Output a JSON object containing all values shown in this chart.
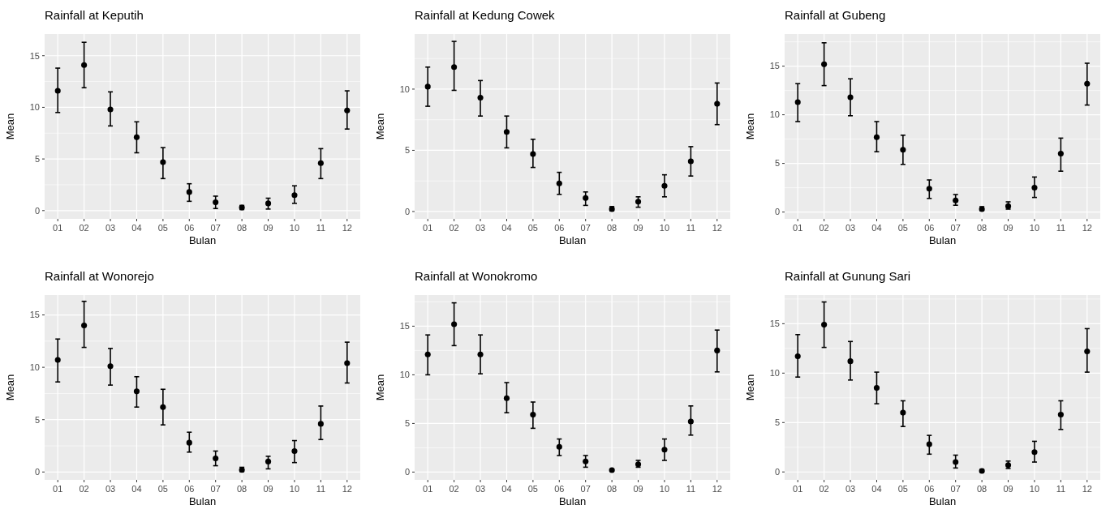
{
  "chart_data": [
    {
      "type": "scatter",
      "title": "Rainfall at Keputih",
      "xlabel": "Bulan",
      "ylabel": "Mean",
      "categories": [
        "01",
        "02",
        "03",
        "04",
        "05",
        "06",
        "07",
        "08",
        "09",
        "10",
        "11",
        "12"
      ],
      "color": "#000000",
      "marker": "circle",
      "grid": true,
      "ylim": [
        -0.8,
        17.1
      ],
      "yticks": [
        0,
        5,
        10,
        15
      ],
      "values": [
        11.6,
        14.1,
        9.8,
        7.1,
        4.7,
        1.8,
        0.8,
        0.3,
        0.7,
        1.5,
        4.6,
        9.7
      ],
      "errors": [
        [
          9.5,
          13.8
        ],
        [
          11.9,
          16.3
        ],
        [
          8.2,
          11.5
        ],
        [
          5.6,
          8.6
        ],
        [
          3.1,
          6.1
        ],
        [
          0.9,
          2.6
        ],
        [
          0.2,
          1.4
        ],
        [
          0.1,
          0.5
        ],
        [
          0.15,
          1.2
        ],
        [
          0.7,
          2.4
        ],
        [
          3.1,
          6.0
        ],
        [
          7.9,
          11.6
        ]
      ]
    },
    {
      "type": "scatter",
      "title": "Rainfall at Kedung Cowek",
      "xlabel": "Bulan",
      "ylabel": "Mean",
      "categories": [
        "01",
        "02",
        "03",
        "04",
        "05",
        "06",
        "07",
        "08",
        "09",
        "10",
        "11",
        "12"
      ],
      "color": "#000000",
      "marker": "circle",
      "grid": true,
      "ylim": [
        -0.6,
        14.5
      ],
      "yticks": [
        0,
        5,
        10
      ],
      "values": [
        10.2,
        11.8,
        9.3,
        6.5,
        4.7,
        2.3,
        1.1,
        0.2,
        0.8,
        2.1,
        4.1,
        8.8
      ],
      "errors": [
        [
          8.6,
          11.8
        ],
        [
          9.9,
          13.9
        ],
        [
          7.8,
          10.7
        ],
        [
          5.2,
          7.8
        ],
        [
          3.6,
          5.9
        ],
        [
          1.4,
          3.2
        ],
        [
          0.5,
          1.6
        ],
        [
          0.05,
          0.4
        ],
        [
          0.35,
          1.2
        ],
        [
          1.2,
          3.0
        ],
        [
          2.9,
          5.3
        ],
        [
          7.1,
          10.5
        ]
      ]
    },
    {
      "type": "scatter",
      "title": "Rainfall at Gubeng",
      "xlabel": "Bulan",
      "ylabel": "Mean",
      "categories": [
        "01",
        "02",
        "03",
        "04",
        "05",
        "06",
        "07",
        "08",
        "09",
        "10",
        "11",
        "12"
      ],
      "color": "#000000",
      "marker": "circle",
      "grid": true,
      "ylim": [
        -0.7,
        18.3
      ],
      "yticks": [
        0,
        5,
        10,
        15
      ],
      "values": [
        11.3,
        15.2,
        11.8,
        7.7,
        6.4,
        2.4,
        1.2,
        0.3,
        0.6,
        2.5,
        6.0,
        13.2
      ],
      "errors": [
        [
          9.3,
          13.2
        ],
        [
          13.0,
          17.4
        ],
        [
          9.9,
          13.7
        ],
        [
          6.2,
          9.3
        ],
        [
          4.9,
          7.9
        ],
        [
          1.4,
          3.3
        ],
        [
          0.7,
          1.8
        ],
        [
          0.15,
          0.55
        ],
        [
          0.3,
          1.05
        ],
        [
          1.5,
          3.6
        ],
        [
          4.2,
          7.6
        ],
        [
          11.0,
          15.3
        ]
      ]
    },
    {
      "type": "scatter",
      "title": "Rainfall at Wonorejo",
      "xlabel": "Bulan",
      "ylabel": "Mean",
      "categories": [
        "01",
        "02",
        "03",
        "04",
        "05",
        "06",
        "07",
        "08",
        "09",
        "10",
        "11",
        "12"
      ],
      "color": "#000000",
      "marker": "circle",
      "grid": true,
      "ylim": [
        -0.75,
        16.9
      ],
      "yticks": [
        0,
        5,
        10,
        15
      ],
      "values": [
        10.7,
        14.0,
        10.1,
        7.7,
        6.2,
        2.8,
        1.3,
        0.2,
        1.0,
        2.0,
        4.6,
        10.4
      ],
      "errors": [
        [
          8.6,
          12.7
        ],
        [
          11.9,
          16.3
        ],
        [
          8.3,
          11.8
        ],
        [
          6.2,
          9.1
        ],
        [
          4.5,
          7.9
        ],
        [
          1.9,
          3.8
        ],
        [
          0.6,
          2.0
        ],
        [
          0.05,
          0.45
        ],
        [
          0.3,
          1.5
        ],
        [
          0.9,
          3.0
        ],
        [
          3.1,
          6.3
        ],
        [
          8.5,
          12.4
        ]
      ]
    },
    {
      "type": "scatter",
      "title": "Rainfall at Wonokromo",
      "xlabel": "Bulan",
      "ylabel": "Mean",
      "categories": [
        "01",
        "02",
        "03",
        "04",
        "05",
        "06",
        "07",
        "08",
        "09",
        "10",
        "11",
        "12"
      ],
      "color": "#000000",
      "marker": "circle",
      "grid": true,
      "ylim": [
        -0.8,
        18.2
      ],
      "yticks": [
        0,
        5,
        10,
        15
      ],
      "values": [
        12.1,
        15.2,
        12.1,
        7.6,
        5.9,
        2.6,
        1.1,
        0.2,
        0.8,
        2.3,
        5.2,
        12.5
      ],
      "errors": [
        [
          10.0,
          14.1
        ],
        [
          13.0,
          17.4
        ],
        [
          10.1,
          14.1
        ],
        [
          6.1,
          9.2
        ],
        [
          4.5,
          7.2
        ],
        [
          1.7,
          3.4
        ],
        [
          0.5,
          1.7
        ],
        [
          0.1,
          0.3
        ],
        [
          0.5,
          1.2
        ],
        [
          1.2,
          3.4
        ],
        [
          3.8,
          6.8
        ],
        [
          10.3,
          14.6
        ]
      ]
    },
    {
      "type": "scatter",
      "title": "Rainfall at Gunung Sari",
      "xlabel": "Bulan",
      "ylabel": "Mean",
      "categories": [
        "01",
        "02",
        "03",
        "04",
        "05",
        "06",
        "07",
        "08",
        "09",
        "10",
        "11",
        "12"
      ],
      "color": "#000000",
      "marker": "circle",
      "grid": true,
      "ylim": [
        -0.8,
        17.9
      ],
      "yticks": [
        0,
        5,
        10,
        15
      ],
      "values": [
        11.7,
        14.9,
        11.2,
        8.5,
        6.0,
        2.8,
        1.0,
        0.1,
        0.7,
        2.0,
        5.8,
        12.2
      ],
      "errors": [
        [
          9.6,
          13.9
        ],
        [
          12.6,
          17.2
        ],
        [
          9.3,
          13.2
        ],
        [
          6.9,
          10.1
        ],
        [
          4.6,
          7.2
        ],
        [
          1.8,
          3.7
        ],
        [
          0.4,
          1.7
        ],
        [
          0.05,
          0.25
        ],
        [
          0.35,
          1.1
        ],
        [
          1.0,
          3.1
        ],
        [
          4.3,
          7.2
        ],
        [
          10.1,
          14.5
        ]
      ]
    }
  ]
}
